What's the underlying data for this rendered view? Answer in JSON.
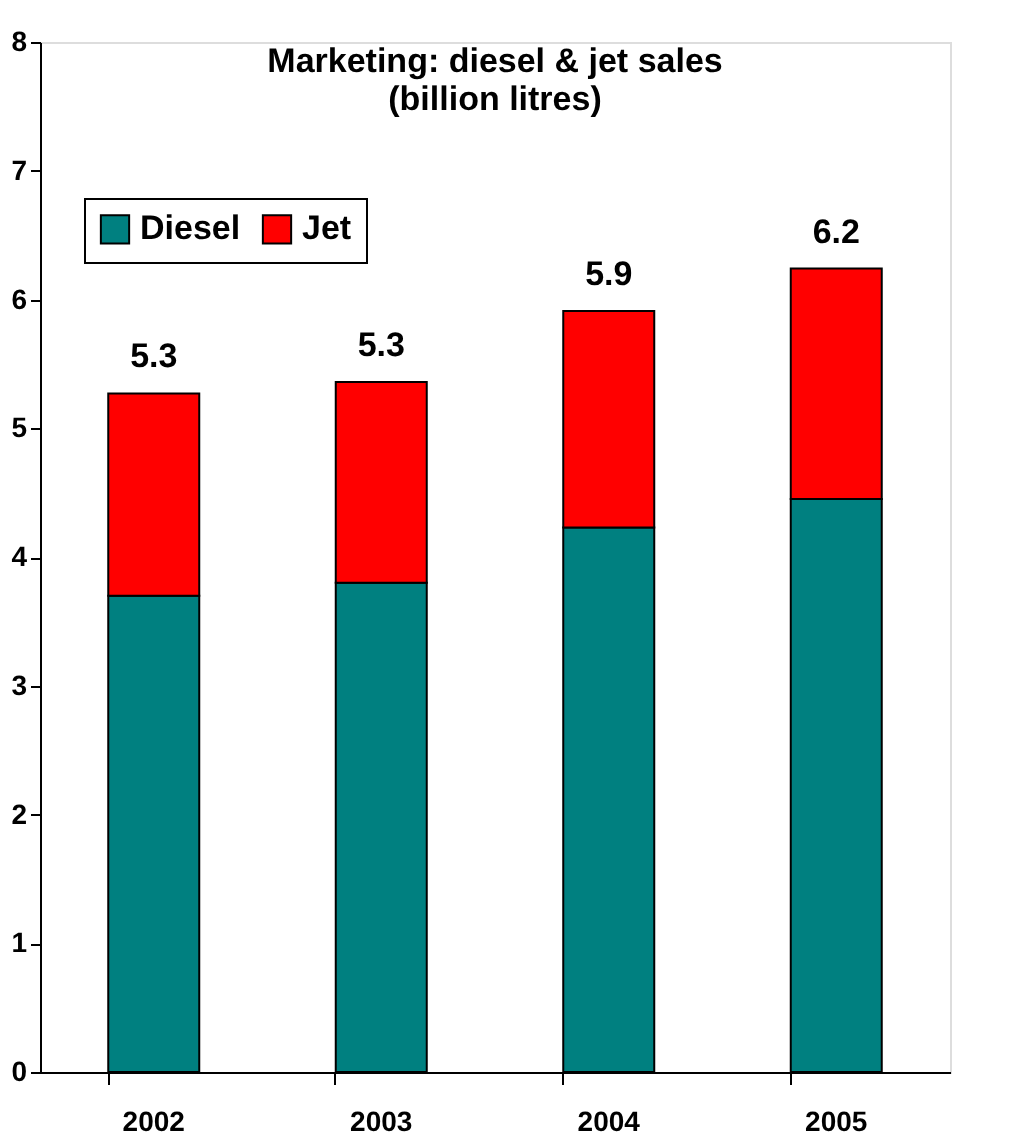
{
  "chart_data": {
    "type": "bar",
    "title": "Marketing: diesel & jet sales",
    "subtitle": "(billion litres)",
    "categories": [
      "2002",
      "2003",
      "2004",
      "2005"
    ],
    "series": [
      {
        "name": "Diesel",
        "color": "#008080",
        "values": [
          3.7,
          3.8,
          4.23,
          4.45
        ]
      },
      {
        "name": "Jet",
        "color": "#ff0000",
        "values": [
          1.57,
          1.56,
          1.68,
          1.79
        ]
      }
    ],
    "stacked": true,
    "totals": [
      "5.3",
      "5.3",
      "5.9",
      "6.2"
    ],
    "ylim": [
      0,
      8
    ],
    "yticks": [
      0,
      1,
      2,
      3,
      4,
      5,
      6,
      7,
      8
    ],
    "grid": false,
    "legend": "top left"
  }
}
